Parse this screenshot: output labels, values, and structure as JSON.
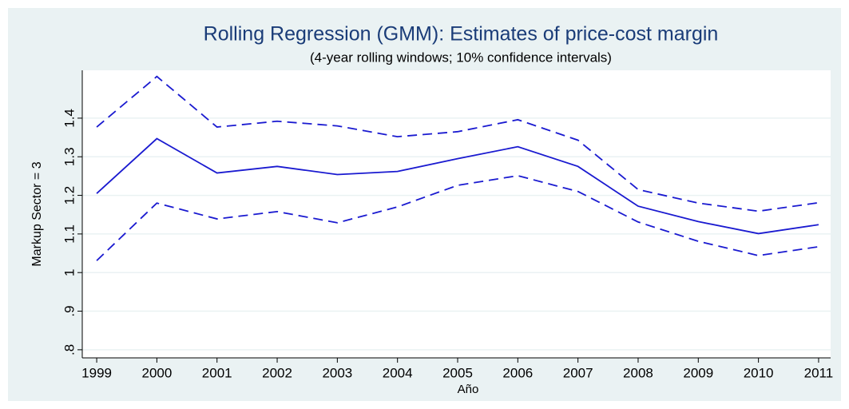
{
  "chart_data": {
    "type": "line",
    "title": "Rolling Regression (GMM): Estimates of price-cost margin",
    "subtitle": "(4-year rolling windows; 10% confidence intervals)",
    "x_label": "Año",
    "y_label": "Markup Sector = 3",
    "x": [
      1999,
      2000,
      2001,
      2002,
      2003,
      2004,
      2005,
      2006,
      2007,
      2008,
      2009,
      2010,
      2011
    ],
    "series": [
      {
        "color": "#1a1ad0",
        "dashed": false,
        "values": [
          1.205,
          1.347,
          1.258,
          1.275,
          1.254,
          1.262,
          1.295,
          1.326,
          1.275,
          1.172,
          1.132,
          1.101,
          1.124
        ]
      },
      {
        "color": "#1a1ad0",
        "dashed": true,
        "values": [
          1.377,
          1.508,
          1.377,
          1.392,
          1.38,
          1.352,
          1.365,
          1.396,
          1.343,
          1.215,
          1.18,
          1.159,
          1.181
        ]
      },
      {
        "color": "#1a1ad0",
        "dashed": true,
        "values": [
          1.031,
          1.18,
          1.139,
          1.158,
          1.129,
          1.17,
          1.226,
          1.251,
          1.21,
          1.131,
          1.081,
          1.044,
          1.067
        ]
      }
    ],
    "xlim": [
      1998.76,
      2011.2
    ],
    "xticks": [
      1999,
      2000,
      2001,
      2002,
      2003,
      2004,
      2005,
      2006,
      2007,
      2008,
      2009,
      2010,
      2011
    ],
    "ylim": [
      0.779,
      1.524
    ],
    "yticks": [
      {
        "value": 0.8,
        "label": ".8"
      },
      {
        "value": 0.9,
        "label": ".9"
      },
      1,
      1.1,
      1.2,
      1.3,
      1.4
    ],
    "grid": true
  }
}
